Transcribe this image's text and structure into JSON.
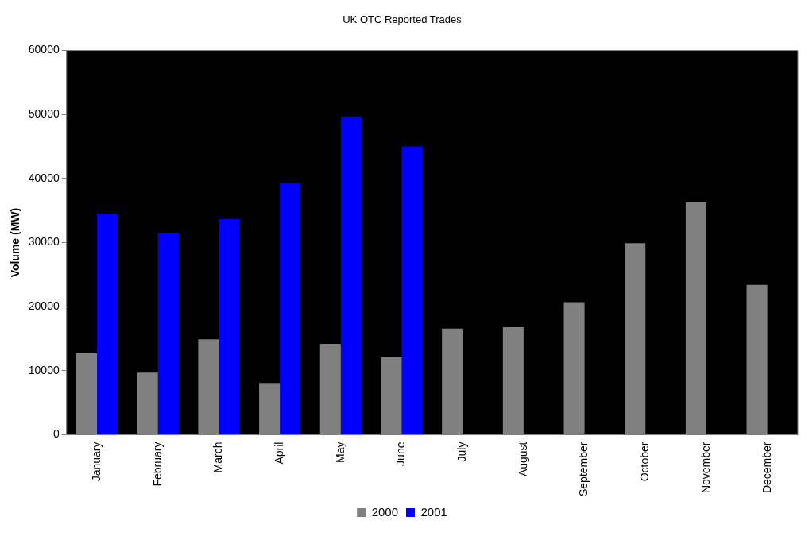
{
  "chart_data": {
    "type": "bar",
    "title": "UK OTC Reported Trades",
    "ylabel": "Volume (MW)",
    "categories": [
      "January",
      "February",
      "March",
      "April",
      "May",
      "June",
      "July",
      "August",
      "September",
      "October",
      "November",
      "December"
    ],
    "series": [
      {
        "name": "2000",
        "color": "#808080",
        "values": [
          12700,
          9700,
          14900,
          8100,
          14200,
          12200,
          16600,
          16800,
          20700,
          29900,
          36300,
          23400
        ]
      },
      {
        "name": "2001",
        "color": "#0000ff",
        "values": [
          34500,
          31500,
          33700,
          39300,
          49700,
          45000,
          null,
          null,
          null,
          null,
          null,
          null
        ]
      }
    ],
    "ylim": [
      0,
      60000
    ],
    "yticks": [
      0,
      10000,
      20000,
      30000,
      40000,
      50000,
      60000
    ],
    "grid": false,
    "legend": "bottom"
  }
}
